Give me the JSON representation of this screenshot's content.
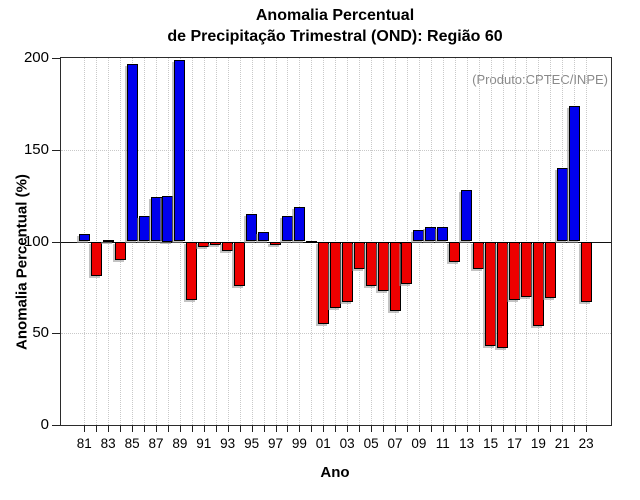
{
  "title": {
    "line1": "Anomalia Percentual",
    "line2": "de Precipitação Trimestral (OND): Região 60"
  },
  "annotation": "(Produto:CPTEC/INPE)",
  "axes": {
    "y_label": "Anomalia Percentual (%)",
    "x_label": "Ano",
    "y_ticks": [
      0,
      50,
      100,
      150,
      200
    ],
    "x_tick_labels": [
      "81",
      "83",
      "85",
      "87",
      "89",
      "91",
      "93",
      "95",
      "97",
      "99",
      "01",
      "03",
      "05",
      "07",
      "09",
      "11",
      "13",
      "15",
      "17",
      "19",
      "21",
      "23"
    ]
  },
  "colors": {
    "positive_bar": "#0000ee",
    "negative_bar": "#ee0000",
    "neutral_bar": "#000000",
    "annotation_text": "#8a8a8a",
    "grid": "#c9c9c9",
    "frame": "#2b2b2b"
  },
  "chart_data": {
    "type": "bar",
    "title": "Anomalia Percentual de Precipitação Trimestral (OND): Região 60",
    "xlabel": "Ano",
    "ylabel": "Anomalia Percentual (%)",
    "ylim": [
      0,
      200
    ],
    "baseline": 100,
    "grid": "dotted, vertical line per year, horizontal at 50/150, solid line at 100",
    "legend_position": "none",
    "color_rule": "value >= 100 blue, value < 100 red, value == 100 black line",
    "categories": [
      "81",
      "82",
      "83",
      "84",
      "85",
      "86",
      "87",
      "88",
      "89",
      "90",
      "91",
      "92",
      "93",
      "94",
      "95",
      "96",
      "97",
      "98",
      "99",
      "00",
      "01",
      "02",
      "03",
      "04",
      "05",
      "06",
      "07",
      "08",
      "09",
      "10",
      "11",
      "12",
      "13",
      "14",
      "15",
      "16",
      "17",
      "18",
      "19",
      "20",
      "21",
      "22",
      "23"
    ],
    "values": [
      104,
      81,
      101,
      90,
      197,
      114,
      124,
      125,
      199,
      68,
      97,
      98,
      95,
      76,
      115,
      105,
      98,
      114,
      119,
      100,
      55,
      64,
      67,
      85,
      76,
      73,
      62,
      77,
      106,
      108,
      108,
      89,
      128,
      85,
      43,
      42,
      68,
      70,
      54,
      69,
      140,
      174,
      67
    ]
  }
}
